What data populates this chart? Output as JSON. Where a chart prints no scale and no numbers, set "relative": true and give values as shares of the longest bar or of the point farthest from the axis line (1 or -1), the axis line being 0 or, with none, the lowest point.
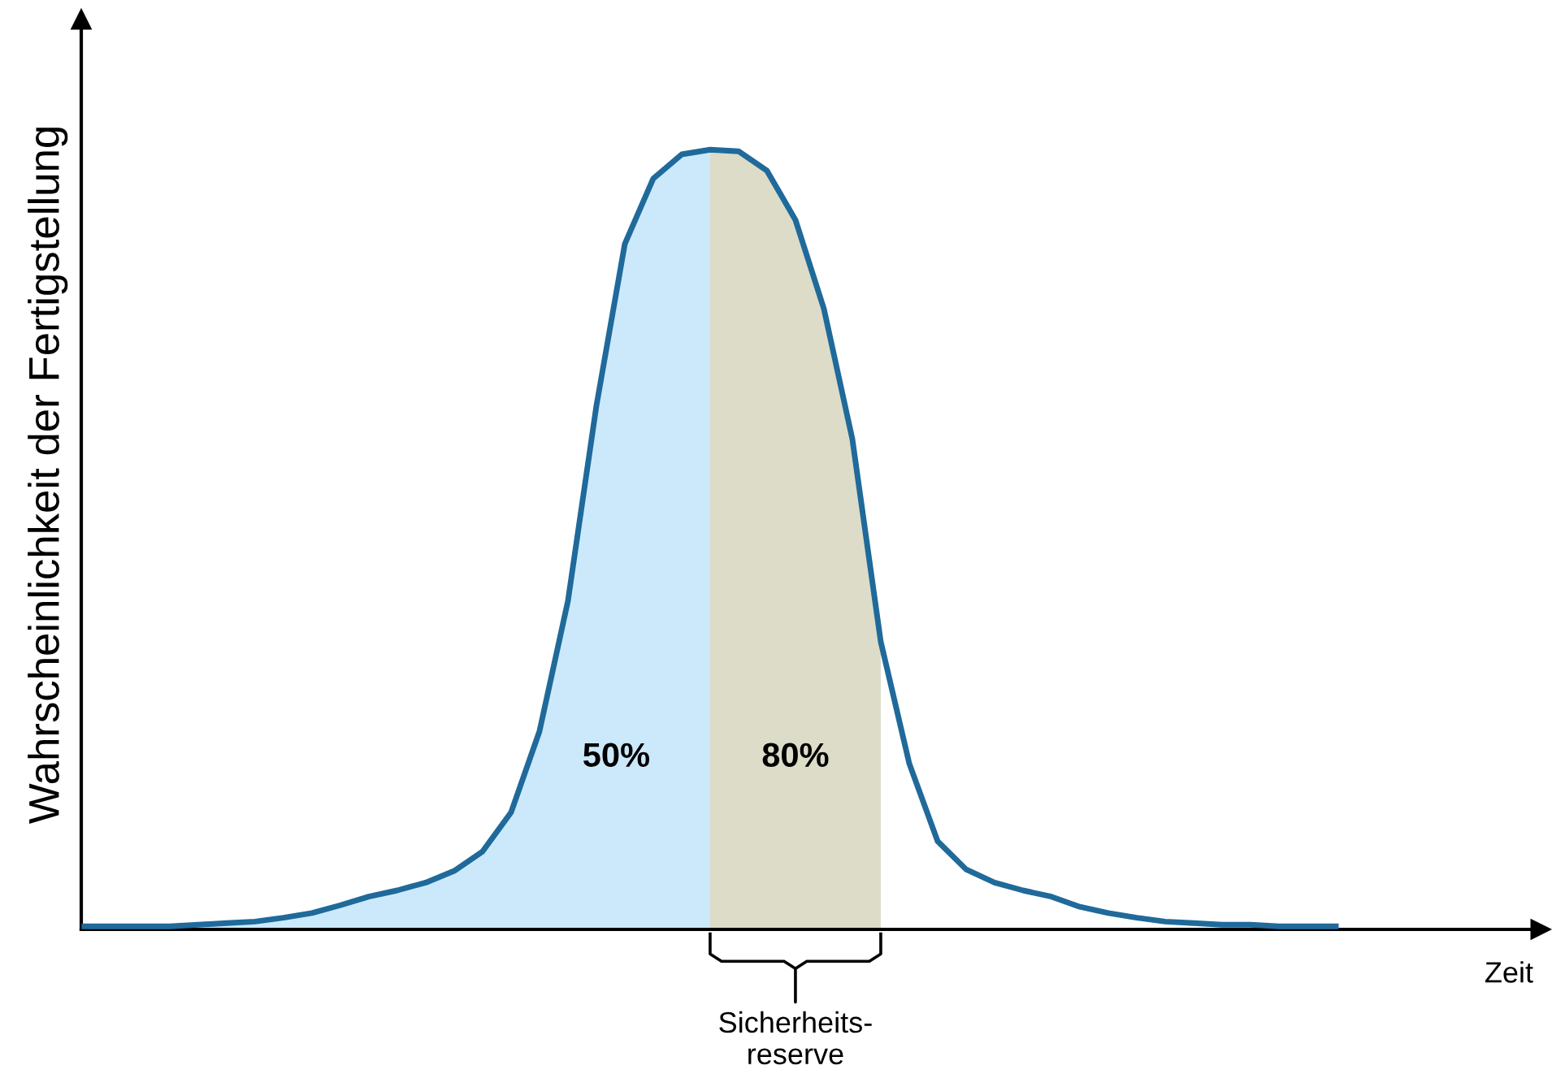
{
  "chart_data": {
    "type": "area",
    "relative": true,
    "xlabel": "Zeit",
    "ylabel": "Wahrscheinlichkeit der Fertigstellung",
    "categories": [
      null,
      null,
      null,
      null,
      null,
      null,
      null,
      null,
      null,
      null,
      null,
      null,
      null,
      null,
      null,
      null,
      null,
      null,
      null,
      null,
      null,
      null,
      null,
      null,
      null,
      null,
      null,
      null,
      null,
      null,
      null,
      null,
      null,
      null,
      null,
      null,
      null,
      null,
      null,
      null,
      null,
      null,
      null,
      null,
      null
    ],
    "series": [
      {
        "color": "#cce9fb",
        "values": [
          0.004,
          0.004,
          0.004,
          0.004,
          0.006,
          0.008,
          0.01,
          0.015,
          0.021,
          0.031,
          0.042,
          0.05,
          0.06,
          0.075,
          0.1,
          0.15,
          0.254,
          0.421,
          0.671,
          0.879,
          0.963,
          0.994,
          1,
          null,
          null,
          null,
          null,
          null,
          null,
          null,
          null,
          null,
          null,
          null,
          null,
          null,
          null,
          null,
          null,
          null,
          null,
          null,
          null,
          null,
          null
        ]
      },
      {
        "color": "#dcdcc8",
        "values": [
          null,
          null,
          null,
          null,
          null,
          null,
          null,
          null,
          null,
          null,
          null,
          null,
          null,
          null,
          null,
          null,
          null,
          null,
          null,
          null,
          null,
          null,
          1,
          0.998,
          0.973,
          0.91,
          0.796,
          0.629,
          0.369,
          null,
          null,
          null,
          null,
          null,
          null,
          null,
          null,
          null,
          null,
          null,
          null,
          null,
          null,
          null,
          null
        ]
      },
      {
        "type": "line",
        "color": "#1f6a9a",
        "values": [
          0.004,
          0.004,
          0.004,
          0.004,
          0.006,
          0.008,
          0.01,
          0.015,
          0.021,
          0.031,
          0.042,
          0.05,
          0.06,
          0.075,
          0.1,
          0.15,
          0.254,
          0.421,
          0.671,
          0.879,
          0.963,
          0.994,
          1,
          0.998,
          0.973,
          0.91,
          0.796,
          0.629,
          0.369,
          0.213,
          0.113,
          0.077,
          0.06,
          0.05,
          0.042,
          0.029,
          0.021,
          0.015,
          0.01,
          0.008,
          0.006,
          0.006,
          0.004,
          0.004,
          0.004
        ]
      }
    ],
    "annotations": [
      "50%",
      "80%",
      "Sicherheits-\nreserve"
    ],
    "legend": false
  }
}
